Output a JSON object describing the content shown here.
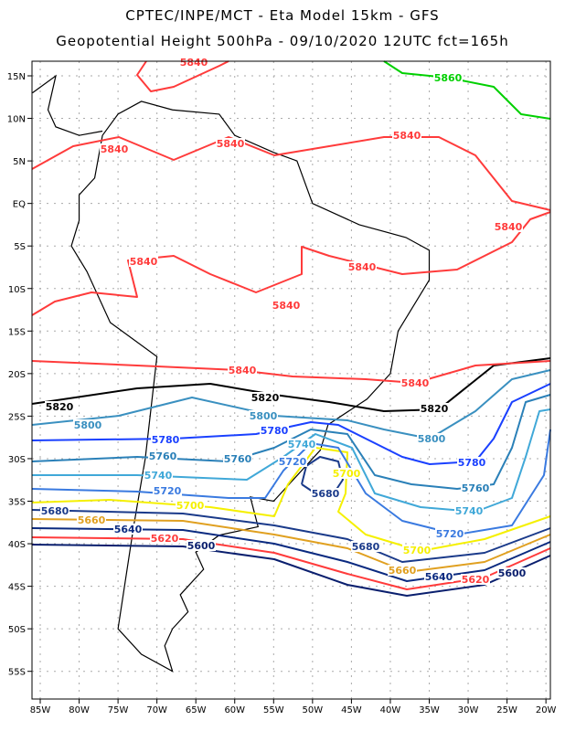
{
  "title_line1": "CPTEC/INPE/MCT -  Eta Model 15km - GFS",
  "title_line2": "Geopotential Height 500hPa - 09/10/2020 12UTC fct=165h",
  "axes": {
    "lon_labels": [
      "85W",
      "80W",
      "75W",
      "70W",
      "65W",
      "60W",
      "55W",
      "50W",
      "45W",
      "40W",
      "35W",
      "30W",
      "25W",
      "20W"
    ],
    "lat_labels": [
      "15N",
      "10N",
      "5N",
      "EQ",
      "5S",
      "10S",
      "15S",
      "20S",
      "25S",
      "30S",
      "35S",
      "40S",
      "45S",
      "50S",
      "55S"
    ]
  },
  "contours": [
    {
      "level": "5600",
      "color": "#0a1f6e"
    },
    {
      "level": "5620",
      "color": "#ff3b3b"
    },
    {
      "level": "5640",
      "color": "#0a2a80"
    },
    {
      "level": "5660",
      "color": "#e0a020"
    },
    {
      "level": "5680",
      "color": "#1a3a8a"
    },
    {
      "level": "5700",
      "color": "#f5f000"
    },
    {
      "level": "5720",
      "color": "#3a7ae0"
    },
    {
      "level": "5740",
      "color": "#40a8d8"
    },
    {
      "level": "5760",
      "color": "#2a80b8"
    },
    {
      "level": "5780",
      "color": "#1a40ff"
    },
    {
      "level": "5800",
      "color": "#3a90c0"
    },
    {
      "level": "5820",
      "color": "#000000"
    },
    {
      "level": "5840",
      "color": "#ff3b3b"
    },
    {
      "level": "5860",
      "color": "#00d000"
    }
  ]
}
